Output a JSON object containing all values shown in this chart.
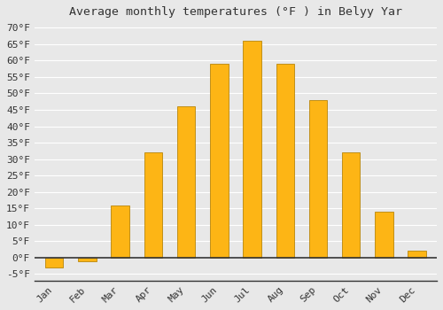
{
  "title": "Average monthly temperatures (°F ) in Belyy Yar",
  "months": [
    "Jan",
    "Feb",
    "Mar",
    "Apr",
    "May",
    "Jun",
    "Jul",
    "Aug",
    "Sep",
    "Oct",
    "Nov",
    "Dec"
  ],
  "values": [
    -3,
    -1,
    16,
    32,
    46,
    59,
    66,
    59,
    48,
    32,
    14,
    2
  ],
  "bar_color": "#FDB515",
  "bar_edge_color": "#B8860B",
  "background_color": "#E8E8E8",
  "plot_bg_color": "#E8E8E8",
  "grid_color": "#FFFFFF",
  "zero_line_color": "#333333",
  "ylim": [
    -7,
    72
  ],
  "yticks": [
    -5,
    0,
    5,
    10,
    15,
    20,
    25,
    30,
    35,
    40,
    45,
    50,
    55,
    60,
    65,
    70
  ],
  "title_fontsize": 9.5,
  "tick_fontsize": 8,
  "font_family": "monospace",
  "bar_width": 0.55
}
